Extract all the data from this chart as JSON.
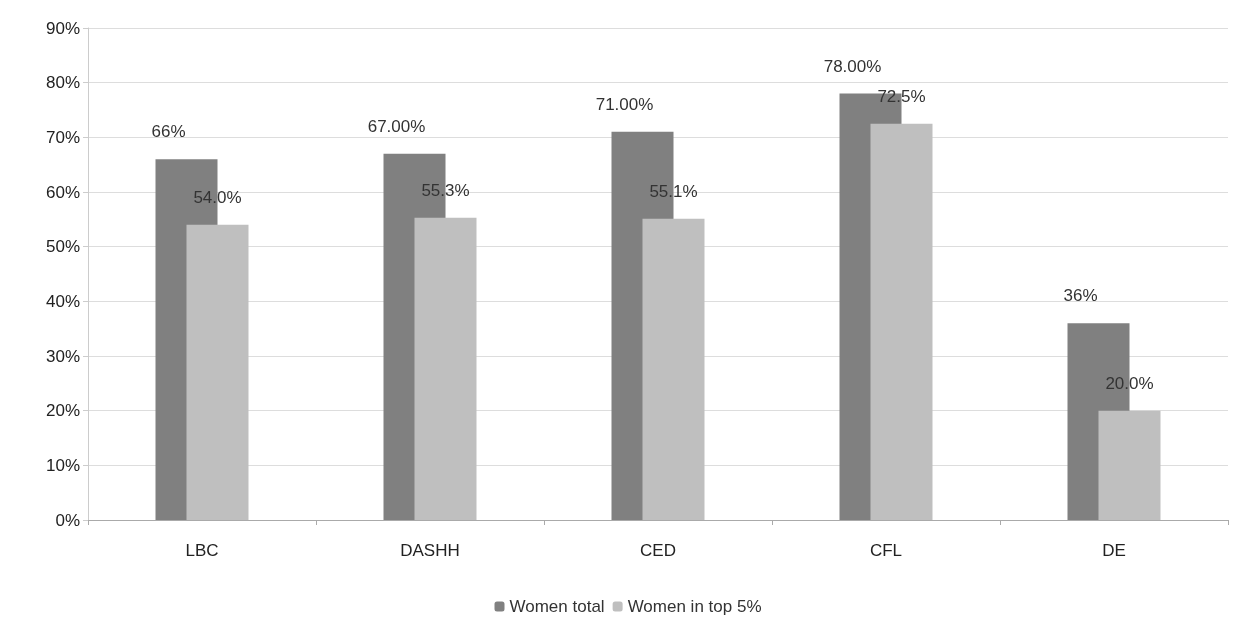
{
  "chart_data": {
    "type": "bar",
    "categories": [
      "LBC",
      "DASHH",
      "CED",
      "CFL",
      "DE"
    ],
    "series": [
      {
        "name": "Women total",
        "color": "#808080",
        "values": [
          66,
          67,
          71,
          78,
          36
        ],
        "value_labels": [
          "66%",
          "67.00%",
          "71.00%",
          "78.00%",
          "36%"
        ]
      },
      {
        "name": "Women in top 5%",
        "color": "#bfbfbf",
        "values": [
          54.0,
          55.3,
          55.1,
          72.5,
          20.0
        ],
        "value_labels": [
          "54.0%",
          "55.3%",
          "55.1%",
          "72.5%",
          "20.0%"
        ]
      }
    ],
    "ylim": [
      0,
      90
    ],
    "yticks": [
      {
        "value": 0,
        "label": "0%"
      },
      {
        "value": 10,
        "label": "10%"
      },
      {
        "value": 20,
        "label": "20%"
      },
      {
        "value": 30,
        "label": "30%"
      },
      {
        "value": 40,
        "label": "40%"
      },
      {
        "value": 50,
        "label": "50%"
      },
      {
        "value": 60,
        "label": "60%"
      },
      {
        "value": 70,
        "label": "70%"
      },
      {
        "value": 80,
        "label": "80%"
      },
      {
        "value": 90,
        "label": "90%"
      }
    ],
    "grid": "y",
    "legend": "bottom"
  }
}
